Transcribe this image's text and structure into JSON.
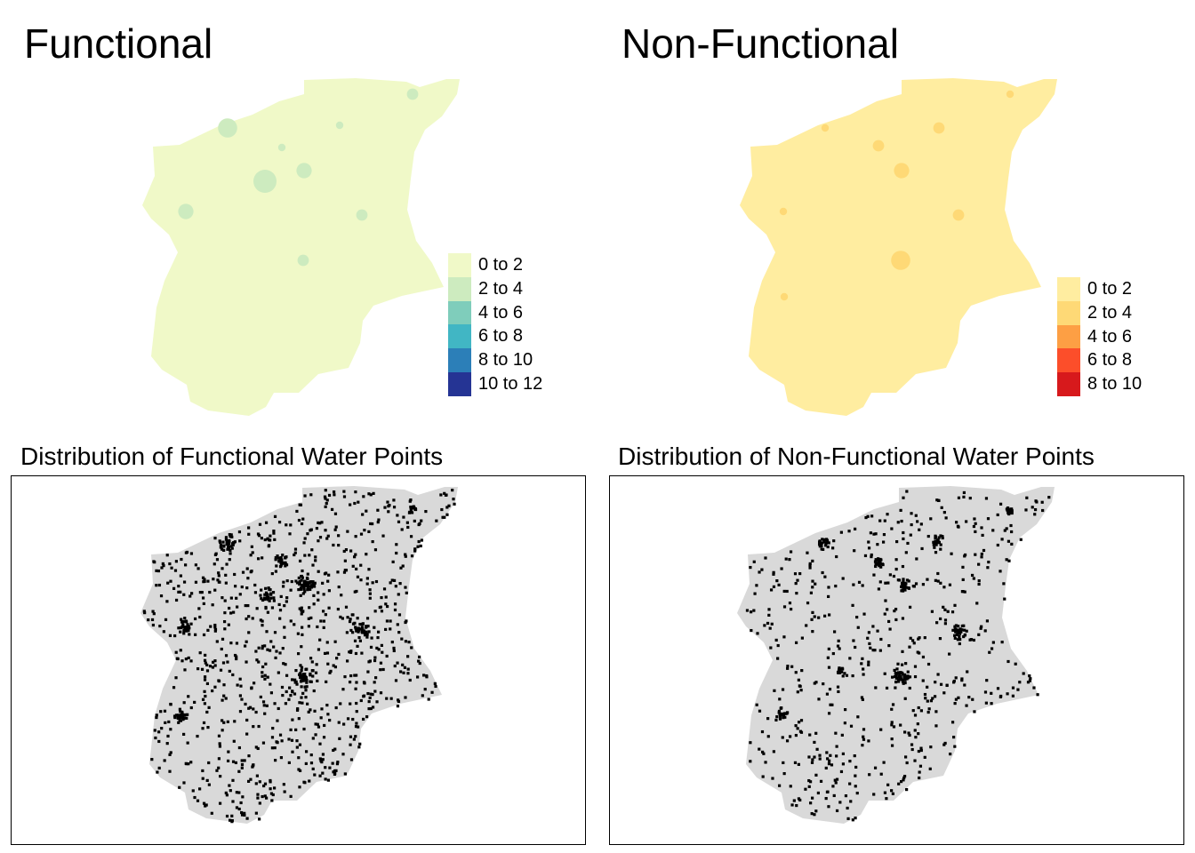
{
  "panels": {
    "functional": {
      "title": "Functional",
      "legend": [
        {
          "label": "0 to 2",
          "color": "#f0f9c8"
        },
        {
          "label": "2 to 4",
          "color": "#cdebbf"
        },
        {
          "label": "4 to 6",
          "color": "#7fcdbb"
        },
        {
          "label": "6 to 8",
          "color": "#41b6c4"
        },
        {
          "label": "8 to 10",
          "color": "#2c7fb8"
        },
        {
          "label": "10 to 12",
          "color": "#253494"
        }
      ]
    },
    "non_functional": {
      "title": "Non-Functional",
      "legend": [
        {
          "label": "0 to 2",
          "color": "#ffeda0"
        },
        {
          "label": "2 to 4",
          "color": "#fed976"
        },
        {
          "label": "4 to 6",
          "color": "#fd9f44"
        },
        {
          "label": "6 to 8",
          "color": "#fc4e2a"
        },
        {
          "label": "8 to 10",
          "color": "#d7191c"
        }
      ]
    },
    "functional_points": {
      "title": "Distribution of Functional Water Points"
    },
    "non_functional_points": {
      "title": "Distribution of Non-Functional Water Points"
    }
  },
  "colors": {
    "region_fill_points": "#d9d9d9",
    "point": "#000000"
  }
}
